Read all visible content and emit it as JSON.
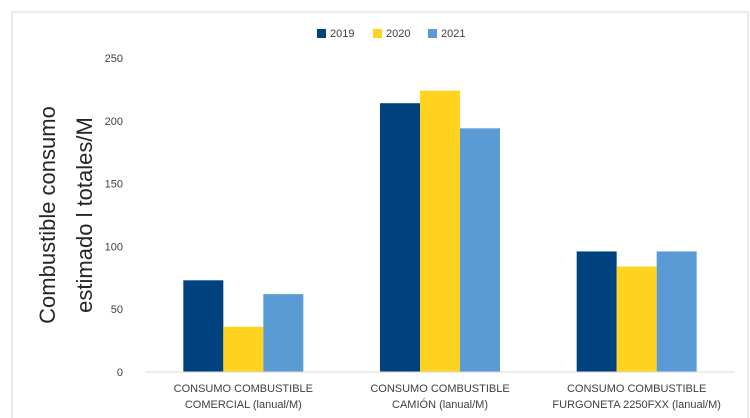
{
  "chart_data": {
    "type": "bar",
    "title": "",
    "xlabel": "",
    "ylabel": [
      "Combustible consumo",
      "estimado    l totales/M"
    ],
    "categories": [
      [
        "CONSUMO COMBUSTIBLE",
        "COMERCIAL (lanual/M)"
      ],
      [
        "CONSUMO COMBUSTIBLE",
        "CAMIÓN (lanual/M)"
      ],
      [
        "CONSUMO COMBUSTIBLE",
        "FURGONETA 2250FXX (lanual/M)"
      ]
    ],
    "series": [
      {
        "name": "2019",
        "color": "#00427F",
        "values": [
          73,
          214,
          96
        ]
      },
      {
        "name": "2020",
        "color": "#FFD320",
        "values": [
          36,
          224,
          84
        ]
      },
      {
        "name": "2021",
        "color": "#5B9BD5",
        "values": [
          62,
          194,
          96
        ]
      }
    ],
    "ylim": [
      0,
      250
    ],
    "yticks": [
      0,
      50,
      100,
      150,
      200,
      250
    ],
    "grid": false,
    "legend": "top-center"
  }
}
